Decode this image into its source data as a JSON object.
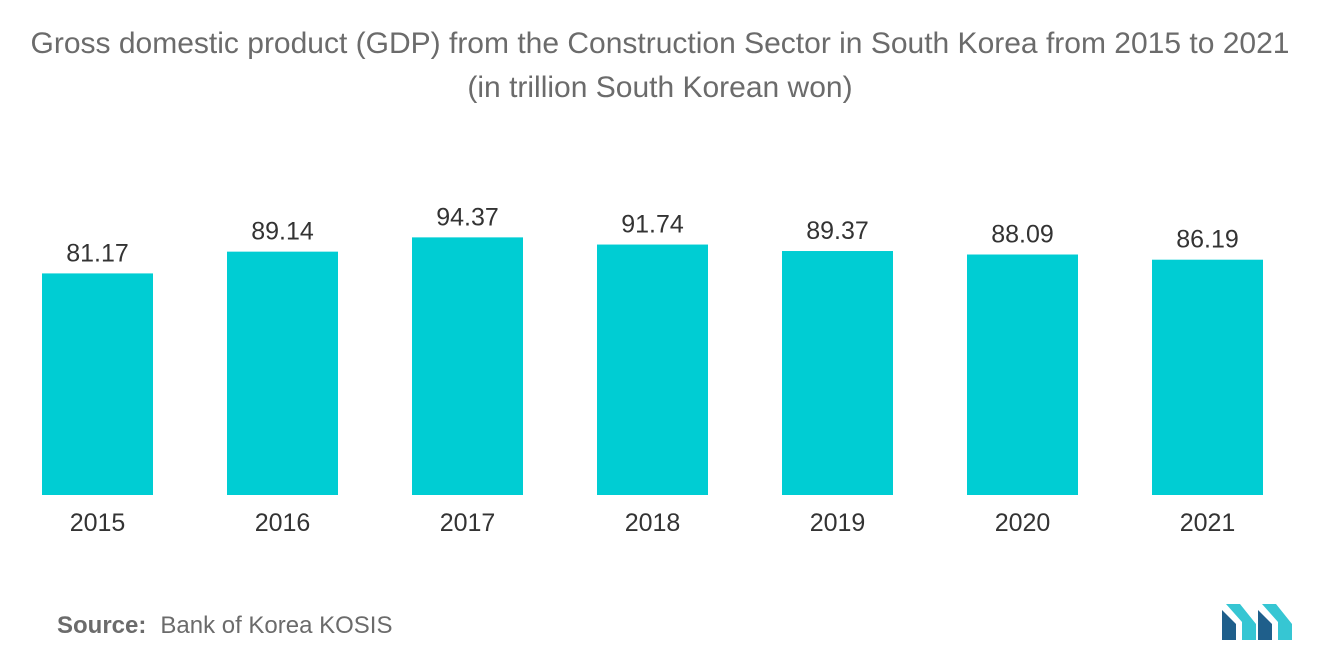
{
  "chart_data": {
    "type": "bar",
    "title": "Gross domestic product (GDP) from the Construction Sector in South Korea from 2015 to 2021 (in trillion South Korean won)",
    "categories": [
      "2015",
      "2016",
      "2017",
      "2018",
      "2019",
      "2020",
      "2021"
    ],
    "values": [
      81.17,
      89.14,
      94.37,
      91.74,
      89.37,
      88.09,
      86.19
    ],
    "value_labels": [
      "81.17",
      "89.14",
      "94.37",
      "91.74",
      "89.37",
      "88.09",
      "86.19"
    ],
    "xlabel": "",
    "ylabel": "",
    "ylim": [
      0,
      100
    ],
    "grid": false,
    "bar_color": "#00cdd3"
  },
  "source": {
    "label": "Source:",
    "text": "Bank of Korea KOSIS"
  },
  "colors": {
    "bar": "#00cdd3",
    "text": "#6b6b6b",
    "label": "#333333",
    "logo_dark": "#1f5f8b",
    "logo_light": "#36c6d3"
  },
  "logo": {
    "icon": "mordor-intelligence-logo"
  }
}
